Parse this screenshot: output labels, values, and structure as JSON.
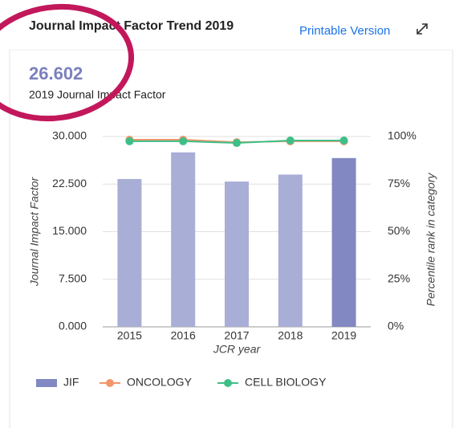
{
  "header": {
    "title": "Journal Impact Factor Trend 2019",
    "link": "Printable Version",
    "value": "26.602",
    "value_caption": "2019 Journal Impact Factor"
  },
  "chart_data": {
    "type": "bar",
    "categories": [
      "2015",
      "2016",
      "2017",
      "2018",
      "2019"
    ],
    "xlabel": "JCR year",
    "ylabel": "Journal Impact Factor",
    "y2label": "Percentile rank in category",
    "ylim": [
      0,
      30
    ],
    "yticks": [
      {
        "value": 0,
        "label": "0.000"
      },
      {
        "value": 7.5,
        "label": "7.500"
      },
      {
        "value": 15,
        "label": "15.000"
      },
      {
        "value": 22.5,
        "label": "22.500"
      },
      {
        "value": 30,
        "label": "30.000"
      }
    ],
    "y2lim": [
      0,
      100
    ],
    "y2ticks": [
      {
        "value": 0,
        "label": "0%"
      },
      {
        "value": 25,
        "label": "25%"
      },
      {
        "value": 50,
        "label": "50%"
      },
      {
        "value": 75,
        "label": "75%"
      },
      {
        "value": 100,
        "label": "100%"
      }
    ],
    "grid": true,
    "series": [
      {
        "name": "JIF",
        "type": "bar",
        "color": "#8188c2",
        "colors": [
          "#a9aed6",
          "#a9aed6",
          "#a9aed6",
          "#a9aed6",
          "#8188c2"
        ],
        "values": [
          23.3,
          27.5,
          22.9,
          24.0,
          26.602
        ]
      },
      {
        "name": "ONCOLOGY",
        "type": "line",
        "axis": "y2",
        "color": "#f4956b",
        "values": [
          98.3,
          98.3,
          97.0,
          97.5,
          97.5
        ]
      },
      {
        "name": "CELL BIOLOGY",
        "type": "line",
        "axis": "y2",
        "color": "#3fbf88",
        "values": [
          97.5,
          97.5,
          96.6,
          97.9,
          97.9
        ]
      }
    ]
  }
}
